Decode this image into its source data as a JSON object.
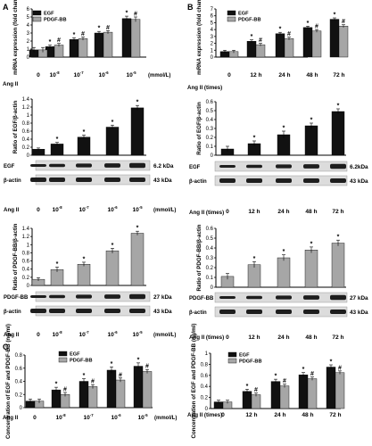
{
  "panel_labels": [
    "A",
    "B",
    "C"
  ],
  "chart_data": [
    {
      "id": "A1",
      "type": "bar",
      "ylabel": "mRNA expression (fold change)",
      "ylim": [
        0,
        6
      ],
      "yticks": [
        0,
        1,
        2,
        3,
        4,
        5,
        6
      ],
      "x_title": "Ang II",
      "categories": [
        "0",
        "10",
        "10",
        "10",
        "10"
      ],
      "cat_exp": [
        "",
        "-8",
        "-7",
        "-6",
        "-5"
      ],
      "unit": "(mmol/L)",
      "legend": [
        "EGF",
        "PDGF-BB"
      ],
      "series": [
        {
          "name": "EGF",
          "values": [
            0.9,
            1.3,
            2.2,
            3.0,
            4.8
          ],
          "errors": [
            0.3,
            0.2,
            0.2,
            0.2,
            0.3
          ],
          "marks": [
            "",
            "*",
            "*",
            "*",
            "*"
          ]
        },
        {
          "name": "PDGF-BB",
          "values": [
            0.9,
            1.5,
            2.3,
            3.1,
            4.7
          ],
          "errors": [
            0.3,
            0.2,
            0.2,
            0.2,
            0.3
          ],
          "marks": [
            "",
            "#",
            "#",
            "#",
            "#"
          ]
        }
      ]
    },
    {
      "id": "B1",
      "type": "bar",
      "ylabel": "mRNA expression (fold change)",
      "ylim": [
        0,
        7
      ],
      "yticks": [
        0,
        1,
        2,
        3,
        4,
        5,
        6,
        7
      ],
      "x_title": "Ang II (times)",
      "categories": [
        "0",
        "12 h",
        "24 h",
        "48 h",
        "72 h"
      ],
      "unit": "",
      "legend": [
        "EGF",
        "PDGF-BB"
      ],
      "series": [
        {
          "name": "EGF",
          "values": [
            0.8,
            2.3,
            3.4,
            4.3,
            5.5
          ],
          "errors": [
            0.2,
            0.2,
            0.2,
            0.2,
            0.2
          ],
          "marks": [
            "",
            "*",
            "*",
            "*",
            "*"
          ]
        },
        {
          "name": "PDGF-BB",
          "values": [
            0.8,
            1.8,
            2.7,
            3.8,
            4.5
          ],
          "errors": [
            0.2,
            0.2,
            0.2,
            0.2,
            0.2
          ],
          "marks": [
            "",
            "#",
            "#",
            "#",
            "#"
          ]
        }
      ]
    },
    {
      "id": "A2",
      "type": "bar",
      "ylabel": "Ratio of EGF/β-actin",
      "ylim": [
        0,
        1.4
      ],
      "yticks": [
        0,
        0.2,
        0.4,
        0.6,
        0.8,
        1.0,
        1.2,
        1.4
      ],
      "categories": [
        "0",
        "10",
        "10",
        "10",
        "10"
      ],
      "cat_exp": [
        "",
        "-8",
        "-7",
        "-6",
        "-5"
      ],
      "series": [
        {
          "name": "EGF",
          "values": [
            0.15,
            0.28,
            0.45,
            0.7,
            1.18
          ],
          "errors": [
            0.03,
            0.04,
            0.05,
            0.05,
            0.06
          ],
          "marks": [
            "",
            "*",
            "*",
            "*",
            "*"
          ]
        }
      ]
    },
    {
      "id": "B2",
      "type": "bar",
      "ylabel": "Ratio of EGF/β-actin",
      "ylim": [
        0,
        0.6
      ],
      "yticks": [
        0,
        0.1,
        0.2,
        0.3,
        0.4,
        0.5,
        0.6
      ],
      "categories": [
        "0",
        "12 h",
        "24 h",
        "48 h",
        "72 h"
      ],
      "series": [
        {
          "name": "EGF",
          "values": [
            0.07,
            0.13,
            0.23,
            0.33,
            0.49
          ],
          "errors": [
            0.03,
            0.03,
            0.04,
            0.03,
            0.03
          ],
          "marks": [
            "",
            "*",
            "*",
            "*",
            "*"
          ]
        }
      ]
    },
    {
      "id": "A3",
      "type": "bar",
      "ylabel": "Ratio of PDGF-BB/β-actin",
      "ylim": [
        0,
        1.4
      ],
      "yticks": [
        0,
        0.2,
        0.4,
        0.6,
        0.8,
        1.0,
        1.2,
        1.4
      ],
      "categories": [
        "0",
        "10",
        "10",
        "10",
        "10"
      ],
      "cat_exp": [
        "",
        "-8",
        "-7",
        "-6",
        "-5"
      ],
      "series": [
        {
          "name": "PDGF-BB",
          "values": [
            0.15,
            0.39,
            0.52,
            0.85,
            1.28
          ],
          "errors": [
            0.04,
            0.06,
            0.05,
            0.06,
            0.05
          ],
          "marks": [
            "",
            "*",
            "*",
            "*",
            "*"
          ]
        }
      ]
    },
    {
      "id": "B3",
      "type": "bar",
      "ylabel": "Ratio of PDGF-BB/β-actin",
      "ylim": [
        0,
        0.6
      ],
      "yticks": [
        0,
        0.1,
        0.2,
        0.3,
        0.4,
        0.5,
        0.6
      ],
      "categories": [
        "0",
        "12 h",
        "24 h",
        "48 h",
        "72 h"
      ],
      "series": [
        {
          "name": "PDGF-BB",
          "values": [
            0.11,
            0.23,
            0.3,
            0.38,
            0.45
          ],
          "errors": [
            0.03,
            0.03,
            0.03,
            0.03,
            0.03
          ],
          "marks": [
            "",
            "*",
            "*",
            "*",
            "*"
          ]
        }
      ]
    },
    {
      "id": "C1",
      "type": "bar",
      "ylabel": "Concentration of EGF and PDGF-BB (ng/ml)",
      "ylim": [
        0,
        0.8
      ],
      "yticks": [
        0,
        0.2,
        0.4,
        0.6,
        0.8
      ],
      "x_title": "Ang II",
      "categories": [
        "0",
        "10",
        "10",
        "10",
        "10"
      ],
      "cat_exp": [
        "",
        "-8",
        "-7",
        "-6",
        "-5"
      ],
      "unit": "(mmol/L)",
      "legend": [
        "EGF",
        "PDGF-BB"
      ],
      "series": [
        {
          "name": "EGF",
          "values": [
            0.1,
            0.27,
            0.4,
            0.57,
            0.63
          ],
          "errors": [
            0.03,
            0.04,
            0.04,
            0.05,
            0.05
          ],
          "marks": [
            "",
            "*",
            "*",
            "*",
            "*"
          ]
        },
        {
          "name": "PDGF-BB",
          "values": [
            0.1,
            0.2,
            0.32,
            0.42,
            0.55
          ],
          "errors": [
            0.03,
            0.03,
            0.03,
            0.03,
            0.03
          ],
          "marks": [
            "",
            "#",
            "#",
            "#",
            "#"
          ]
        }
      ]
    },
    {
      "id": "C2",
      "type": "bar",
      "ylabel": "Concentration of EGF and PDGF-BB (ng/ml)",
      "ylim": [
        0,
        1.0
      ],
      "yticks": [
        0,
        0.2,
        0.4,
        0.6,
        0.8,
        1.0
      ],
      "x_title": "Ang II (times)",
      "categories": [
        "0",
        "12 h",
        "24 h",
        "48 h",
        "72 h"
      ],
      "unit": "",
      "legend": [
        "EGF",
        "PDGF-BB"
      ],
      "series": [
        {
          "name": "EGF",
          "values": [
            0.12,
            0.31,
            0.49,
            0.61,
            0.75
          ],
          "errors": [
            0.03,
            0.04,
            0.04,
            0.04,
            0.04
          ],
          "marks": [
            "",
            "*",
            "*",
            "*",
            "*"
          ]
        },
        {
          "name": "PDGF-BB",
          "values": [
            0.12,
            0.25,
            0.41,
            0.54,
            0.65
          ],
          "errors": [
            0.03,
            0.03,
            0.03,
            0.03,
            0.03
          ],
          "marks": [
            "",
            "#",
            "#",
            "#",
            "#"
          ]
        }
      ]
    }
  ],
  "blots": [
    {
      "id": "WA1",
      "rows": [
        {
          "label": "EGF",
          "kda": "6.2 kDa"
        },
        {
          "label": "β-actin",
          "kda": "43 kDa"
        }
      ],
      "x_title": "Ang II",
      "categories": [
        "0",
        "10",
        "10",
        "10",
        "10"
      ],
      "cat_exp": [
        "",
        "-8",
        "-7",
        "-6",
        "-5"
      ],
      "unit": "(mmol/L)"
    },
    {
      "id": "WB1",
      "rows": [
        {
          "label": "EGF",
          "kda": "6.2kDa"
        },
        {
          "label": "β-actin",
          "kda": "43 kDa"
        }
      ],
      "x_title": "Ang II (times)",
      "categories": [
        "0",
        "12 h",
        "24 h",
        "48 h",
        "72 h"
      ],
      "unit": ""
    },
    {
      "id": "WA2",
      "rows": [
        {
          "label": "PDGF-BB",
          "kda": "27 kDa"
        },
        {
          "label": "β-actin",
          "kda": "43 kDa"
        }
      ],
      "x_title": "Ang II",
      "categories": [
        "0",
        "10",
        "10",
        "10",
        "10"
      ],
      "cat_exp": [
        "",
        "-8",
        "-7",
        "-6",
        "-5"
      ],
      "unit": "(mmol/L)"
    },
    {
      "id": "WB2",
      "rows": [
        {
          "label": "PDGF-BB",
          "kda": "27 kDa"
        },
        {
          "label": "β-actin",
          "kda": "43 kDa"
        }
      ],
      "x_title": "Ang II (times)",
      "categories": [
        "0",
        "12 h",
        "24 h",
        "48 h",
        "72 h"
      ],
      "unit": ""
    }
  ],
  "colors": {
    "EGF": "#111111",
    "PDGF-BB": "#a6a6a6",
    "band": "#1e1e1e",
    "blot_bg": "#dcdcdc"
  }
}
